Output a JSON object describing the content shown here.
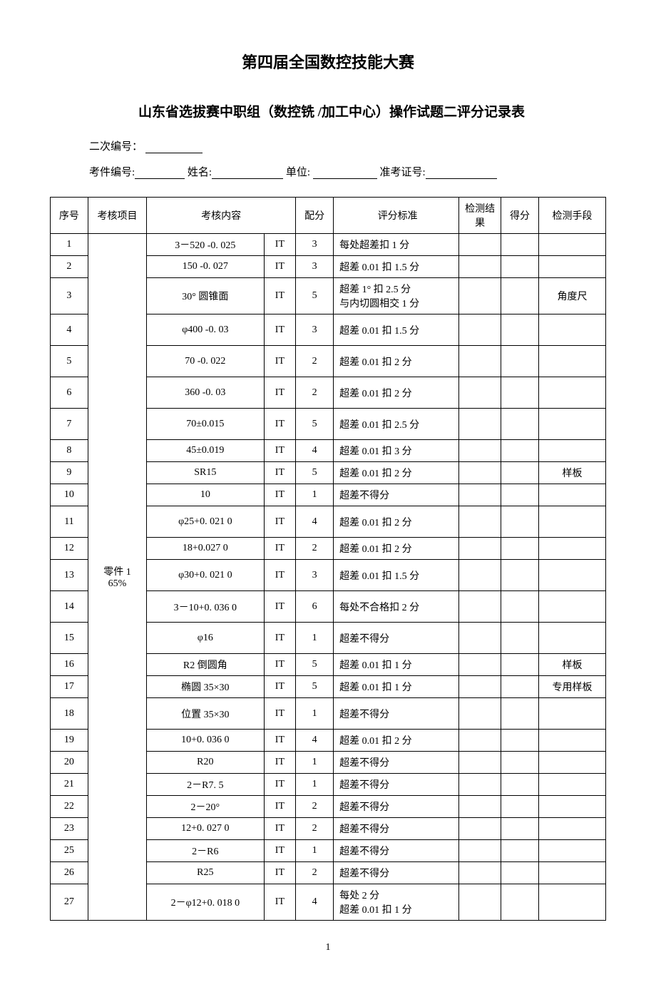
{
  "title_main": "第四届全国数控技能大赛",
  "title_sub": "山东省选拔赛中职组（数控铣 /加工中心）操作试题二评分记录表",
  "info": {
    "secondary_id_label": "二次编号：",
    "part_id_label": "考件编号:",
    "name_label": "姓名:",
    "unit_label": "单位:",
    "exam_id_label": "准考证号:"
  },
  "headers": {
    "seq": "序号",
    "project": "考核项目",
    "content": "考核内容",
    "score": "配分",
    "standard": "评分标准",
    "result": "检测结果",
    "got": "得分",
    "method": "检测手段"
  },
  "project_label": "零件 1\n65%",
  "rows": [
    {
      "seq": "1",
      "content": "3－520 -0. 025",
      "it": "IT",
      "score": "3",
      "std": "每处超差扣 1 分",
      "method": "",
      "tall": false
    },
    {
      "seq": "2",
      "content": "150 -0. 027",
      "it": "IT",
      "score": "3",
      "std": "超差 0.01 扣 1.5 分",
      "method": "",
      "tall": false
    },
    {
      "seq": "3",
      "content": "30° 圆锥面",
      "it": "IT",
      "score": "5",
      "std": "超差 1° 扣 2.5 分\n与内切圆相交 1 分",
      "method": "角度尺",
      "tall": true
    },
    {
      "seq": "4",
      "content": "φ400 -0. 03",
      "it": "IT",
      "score": "3",
      "std": "超差 0.01 扣 1.5 分",
      "method": "",
      "tall": true
    },
    {
      "seq": "5",
      "content": "70 -0. 022",
      "it": "IT",
      "score": "2",
      "std": "超差 0.01 扣 2 分",
      "method": "",
      "tall": true
    },
    {
      "seq": "6",
      "content": "360 -0. 03",
      "it": "IT",
      "score": "2",
      "std": "超差 0.01 扣 2 分",
      "method": "",
      "tall": true
    },
    {
      "seq": "7",
      "content": "70±0.015",
      "it": "IT",
      "score": "5",
      "std": "超差 0.01 扣 2.5 分",
      "method": "",
      "tall": true
    },
    {
      "seq": "8",
      "content": "45±0.019",
      "it": "IT",
      "score": "4",
      "std": "超差 0.01 扣 3 分",
      "method": "",
      "tall": false
    },
    {
      "seq": "9",
      "content": "SR15",
      "it": "IT",
      "score": "5",
      "std": "超差 0.01 扣 2 分",
      "method": "样板",
      "tall": false
    },
    {
      "seq": "10",
      "content": "10",
      "it": "IT",
      "score": "1",
      "std": "超差不得分",
      "method": "",
      "tall": false
    },
    {
      "seq": "11",
      "content": "φ25+0. 021 0",
      "it": "IT",
      "score": "4",
      "std": "超差 0.01 扣 2 分",
      "method": "",
      "tall": true
    },
    {
      "seq": "12",
      "content": "18+0.027 0",
      "it": "IT",
      "score": "2",
      "std": "超差 0.01 扣 2 分",
      "method": "",
      "tall": false
    },
    {
      "seq": "13",
      "content": "φ30+0. 021 0",
      "it": "IT",
      "score": "3",
      "std": "超差 0.01 扣 1.5 分",
      "method": "",
      "tall": true
    },
    {
      "seq": "14",
      "content": "3－10+0. 036 0",
      "it": "IT",
      "score": "6",
      "std": "每处不合格扣 2 分",
      "method": "",
      "tall": true
    },
    {
      "seq": "15",
      "content": "φ16",
      "it": "IT",
      "score": "1",
      "std": "超差不得分",
      "method": "",
      "tall": true
    },
    {
      "seq": "16",
      "content": "R2 倒圆角",
      "it": "IT",
      "score": "5",
      "std": "超差 0.01 扣 1 分",
      "method": "样板",
      "tall": false
    },
    {
      "seq": "17",
      "content": "椭圆 35×30",
      "it": "IT",
      "score": "5",
      "std": "超差 0.01 扣 1 分",
      "method": "专用样板",
      "tall": false
    },
    {
      "seq": "18",
      "content": "位置 35×30",
      "it": "IT",
      "score": "1",
      "std": "超差不得分",
      "method": "",
      "tall": true
    },
    {
      "seq": "19",
      "content": "10+0. 036 0",
      "it": "IT",
      "score": "4",
      "std": "超差 0.01 扣 2 分",
      "method": "",
      "tall": false
    },
    {
      "seq": "20",
      "content": "R20",
      "it": "IT",
      "score": "1",
      "std": "超差不得分",
      "method": "",
      "tall": false
    },
    {
      "seq": "21",
      "content": "2－R7. 5",
      "it": "IT",
      "score": "1",
      "std": "超差不得分",
      "method": "",
      "tall": false
    },
    {
      "seq": "22",
      "content": "2－20°",
      "it": "IT",
      "score": "2",
      "std": "超差不得分",
      "method": "",
      "tall": false
    },
    {
      "seq": "23",
      "content": "12+0. 027 0",
      "it": "IT",
      "score": "2",
      "std": "超差不得分",
      "method": "",
      "tall": false
    },
    {
      "seq": "25",
      "content": "2－R6",
      "it": "IT",
      "score": "1",
      "std": "超差不得分",
      "method": "",
      "tall": false
    },
    {
      "seq": "26",
      "content": "R25",
      "it": "IT",
      "score": "2",
      "std": "超差不得分",
      "method": "",
      "tall": false
    },
    {
      "seq": "27",
      "content": "2－φ12+0. 018 0",
      "it": "IT",
      "score": "4",
      "std": "每处 2 分\n超差 0.01 扣 1 分",
      "method": "",
      "tall": true
    }
  ],
  "page_number": "1"
}
